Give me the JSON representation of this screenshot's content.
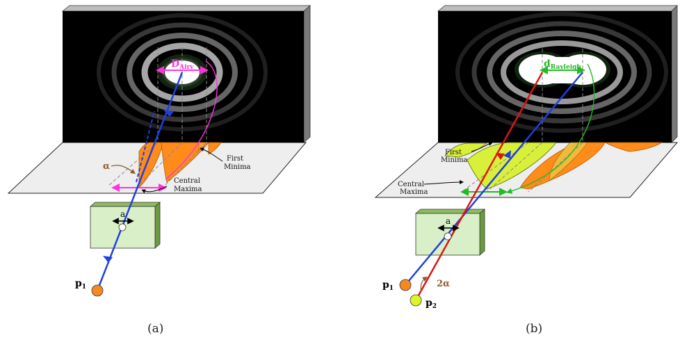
{
  "panels": [
    {
      "caption": "(a)",
      "width_label": {
        "main": "D",
        "sub": "Airy"
      },
      "angle_label": "α",
      "slit_label": "a",
      "source_labels": [
        {
          "main": "p",
          "sub": "1"
        }
      ],
      "annotations": {
        "first_minima": [
          "First",
          "Minima"
        ],
        "central_maxima": [
          "Central",
          "Maxima"
        ]
      }
    },
    {
      "caption": "(b)",
      "width_label": {
        "main": "d",
        "sub": "Rayleigh"
      },
      "angle_label": "2α",
      "slit_label": "a",
      "source_labels": [
        {
          "main": "p",
          "sub": "1"
        },
        {
          "main": "p",
          "sub": "2"
        }
      ],
      "annotations": {
        "first_minima": [
          "First",
          "Minima"
        ],
        "central_maxima": [
          "Central",
          "Maxima"
        ]
      }
    }
  ],
  "colors": {
    "ray_p1": "#1f3fe0",
    "ray_p2": "#e01414",
    "width_marker_a": "#ff33dd",
    "width_marker_b": "#22bb22",
    "source_p1": "#f5891f",
    "source_p2": "#dff22a",
    "pattern_p1": "#ff8c1a",
    "pattern_p2": "#d9f03a",
    "slit_box": "#d8efc8",
    "angle_label": "#8b5a2b"
  }
}
